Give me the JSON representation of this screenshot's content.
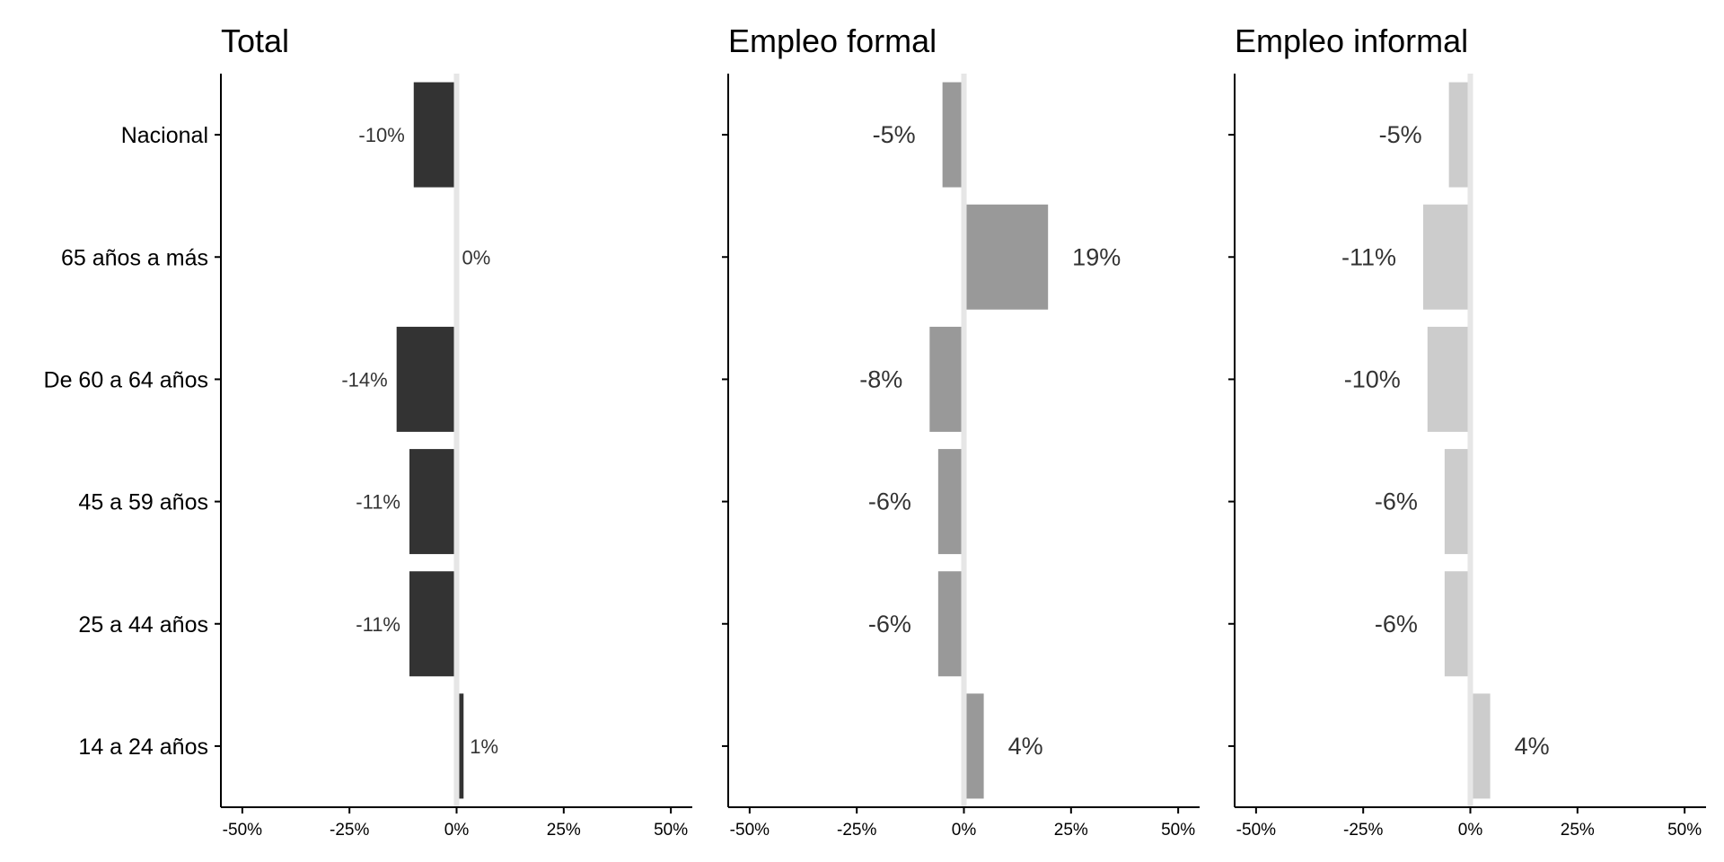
{
  "chart_data": {
    "type": "bar",
    "orientation": "horizontal",
    "categories": [
      "Nacional",
      "65 años a más",
      "De 60 a 64 años",
      "45 a 59 años",
      "25 a 44 años",
      "14 a 24 años"
    ],
    "xlim": [
      -55,
      55
    ],
    "xticks": [
      -50,
      -25,
      0,
      25,
      50
    ],
    "xtick_labels": [
      "-50%",
      "-25%",
      "0%",
      "25%",
      "50%"
    ],
    "zero_line_color": "#e6e6e6",
    "grid": false,
    "legend": "none",
    "panels": [
      {
        "title": "Total",
        "color": "#333333",
        "values": [
          -10,
          0,
          -14,
          -11,
          -11,
          1
        ],
        "value_labels": [
          "-10%",
          "0%",
          "-14%",
          "-11%",
          "-11%",
          "1%"
        ]
      },
      {
        "title": "Empleo formal",
        "color": "#999999",
        "values": [
          -5,
          19,
          -8,
          -6,
          -6,
          4
        ],
        "value_labels": [
          "-5%",
          "19%",
          "-8%",
          "-6%",
          "-6%",
          "4%"
        ]
      },
      {
        "title": "Empleo informal",
        "color": "#cccccc",
        "values": [
          -5,
          -11,
          -10,
          -6,
          -6,
          4
        ],
        "value_labels": [
          "-5%",
          "-11%",
          "-10%",
          "-6%",
          "-6%",
          "4%"
        ]
      }
    ]
  }
}
